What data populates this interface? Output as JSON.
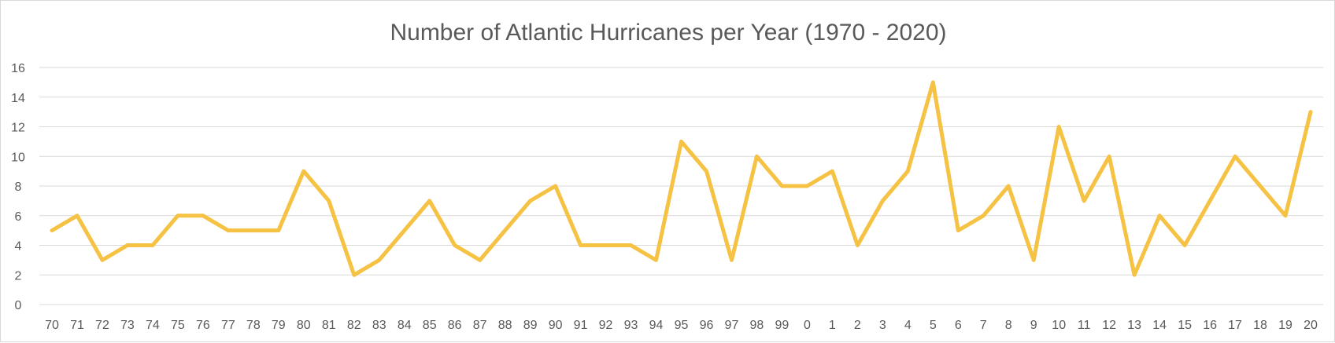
{
  "chart_data": {
    "type": "line",
    "title": "Number of Atlantic Hurricanes per Year (1970 - 2020)",
    "xlabel": "",
    "ylabel": "",
    "ylim": [
      0,
      16
    ],
    "y_ticks": [
      0,
      2,
      4,
      6,
      8,
      10,
      12,
      14,
      16
    ],
    "grid": true,
    "legend": "none",
    "categories": [
      "70",
      "71",
      "72",
      "73",
      "74",
      "75",
      "76",
      "77",
      "78",
      "79",
      "80",
      "81",
      "82",
      "83",
      "84",
      "85",
      "86",
      "87",
      "88",
      "89",
      "90",
      "91",
      "92",
      "93",
      "94",
      "95",
      "96",
      "97",
      "98",
      "99",
      "0",
      "1",
      "2",
      "3",
      "4",
      "5",
      "6",
      "7",
      "8",
      "9",
      "10",
      "11",
      "12",
      "13",
      "14",
      "15",
      "16",
      "17",
      "18",
      "19",
      "20"
    ],
    "series": [
      {
        "color": "#f5c243",
        "values": [
          5,
          6,
          3,
          4,
          4,
          6,
          6,
          5,
          5,
          5,
          9,
          7,
          2,
          3,
          5,
          7,
          4,
          3,
          5,
          7,
          8,
          4,
          4,
          4,
          3,
          11,
          9,
          3,
          10,
          8,
          8,
          9,
          4,
          7,
          9,
          15,
          5,
          6,
          8,
          3,
          12,
          7,
          10,
          2,
          6,
          4,
          7,
          10,
          8,
          6,
          13
        ]
      }
    ]
  }
}
